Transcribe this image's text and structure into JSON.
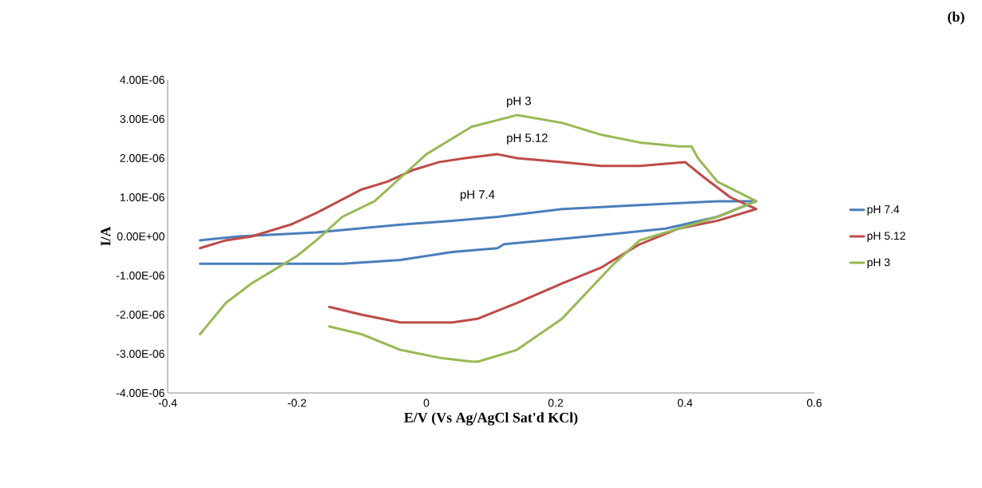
{
  "chart_data": {
    "type": "line",
    "title": "(b)",
    "xlabel": "E/V (Vs Ag/AgCl Sat'd KCl)",
    "ylabel": "I/A",
    "xlim": [
      -0.4,
      0.6
    ],
    "xticks": [
      -0.4,
      -0.2,
      0,
      0.2,
      0.4,
      0.6
    ],
    "ylim": [
      -4e-06,
      4e-06
    ],
    "yticks": [
      {
        "value": -4e-06,
        "label": "-4.00E-06"
      },
      {
        "value": -3e-06,
        "label": "-3.00E-06"
      },
      {
        "value": -2e-06,
        "label": "-2.00E-06"
      },
      {
        "value": -1e-06,
        "label": "-1.00E-06"
      },
      {
        "value": 0,
        "label": "0.00E+00"
      },
      {
        "value": 1e-06,
        "label": "1.00E-06"
      },
      {
        "value": 2e-06,
        "label": "2.00E-06"
      },
      {
        "value": 3e-06,
        "label": "3.00E-06"
      },
      {
        "value": 4e-06,
        "label": "4.00E-06"
      }
    ],
    "grid": false,
    "legend": "right",
    "marker": "none",
    "line_style": "solid",
    "annotations": [
      "pH 3",
      "pH 5.12",
      "pH 7.4"
    ],
    "series": [
      {
        "name": "pH 7.4",
        "color": "#4a7ebb",
        "x": [
          -0.35,
          -0.29,
          -0.17,
          -0.04,
          0.04,
          0.11,
          0.21,
          0.33,
          0.45,
          0.51,
          0.51,
          0.45,
          0.37,
          0.25,
          0.12,
          0.11,
          0.04,
          -0.04,
          -0.13,
          -0.25,
          -0.35
        ],
        "values": [
          -1e-07,
          0,
          1e-07,
          3e-07,
          4e-07,
          5e-07,
          7e-07,
          8e-07,
          9e-07,
          9e-07,
          9e-07,
          5e-07,
          2e-07,
          0,
          -2e-07,
          -3e-07,
          -4e-07,
          -6e-07,
          -7e-07,
          -7e-07,
          -7e-07
        ]
      },
      {
        "name": "pH 5.12",
        "color": "#be4b48",
        "x": [
          -0.35,
          -0.31,
          -0.27,
          -0.21,
          -0.17,
          -0.1,
          -0.06,
          -0.02,
          0.02,
          0.06,
          0.11,
          0.14,
          0.21,
          0.27,
          0.33,
          0.4,
          0.43,
          0.47,
          0.51,
          0.45,
          0.39,
          0.33,
          0.27,
          0.21,
          0.14,
          0.08,
          0.04,
          -0.04,
          -0.1,
          -0.15
        ],
        "values": [
          -3e-07,
          -1e-07,
          0,
          3e-07,
          6e-07,
          1.2e-06,
          1.4e-06,
          1.7e-06,
          1.9e-06,
          2e-06,
          2.1e-06,
          2e-06,
          1.9e-06,
          1.8e-06,
          1.8e-06,
          1.9e-06,
          1.5e-06,
          1e-06,
          7e-07,
          4e-07,
          2e-07,
          -2e-07,
          -8e-07,
          -1.2e-06,
          -1.7e-06,
          -2.1e-06,
          -2.2e-06,
          -2.2e-06,
          -2e-06,
          -1.8e-06
        ]
      },
      {
        "name": "pH 3",
        "color": "#98b954",
        "x": [
          -0.35,
          -0.31,
          -0.27,
          -0.24,
          -0.2,
          -0.17,
          -0.13,
          -0.08,
          -0.04,
          0,
          0.04,
          0.07,
          0.14,
          0.21,
          0.27,
          0.33,
          0.39,
          0.41,
          0.42,
          0.45,
          0.51,
          0.45,
          0.39,
          0.33,
          0.29,
          0.25,
          0.21,
          0.14,
          0.08,
          0.07,
          0.02,
          -0.04,
          -0.1,
          -0.15
        ],
        "values": [
          -2.5e-06,
          -1.7e-06,
          -1.2e-06,
          -9e-07,
          -5e-07,
          -1e-07,
          5e-07,
          9e-07,
          1.5e-06,
          2.1e-06,
          2.5e-06,
          2.8e-06,
          3.1e-06,
          2.9e-06,
          2.6e-06,
          2.4e-06,
          2.3e-06,
          2.3e-06,
          2e-06,
          1.4e-06,
          9e-07,
          5e-07,
          2e-07,
          -1e-07,
          -7e-07,
          -1.4e-06,
          -2.1e-06,
          -2.9e-06,
          -3.2e-06,
          -3.2e-06,
          -3.1e-06,
          -2.9e-06,
          -2.5e-06,
          -2.3e-06
        ]
      }
    ]
  }
}
